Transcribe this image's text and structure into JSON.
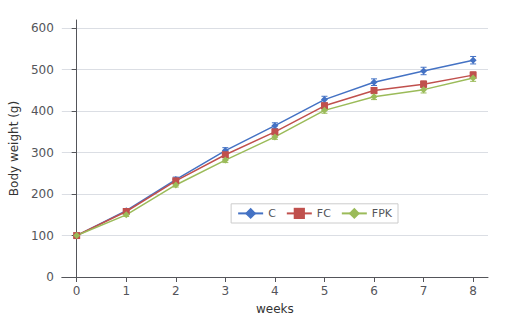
{
  "chart_data": {
    "type": "line",
    "xlabel": "weeks",
    "ylabel": "Body weight (g)",
    "x": [
      0,
      1,
      2,
      3,
      4,
      5,
      6,
      7,
      8
    ],
    "series": [
      {
        "name": "C",
        "color": "#4472C4",
        "marker": "diamond",
        "values": [
          100,
          160,
          235,
          305,
          365,
          428,
          470,
          497,
          523
        ],
        "errors": [
          4,
          5,
          6,
          7,
          7,
          8,
          8,
          9,
          9
        ]
      },
      {
        "name": "FC",
        "color": "#C0504D",
        "marker": "square",
        "values": [
          100,
          158,
          232,
          295,
          350,
          413,
          450,
          465,
          487
        ],
        "errors": [
          3,
          4,
          5,
          6,
          6,
          7,
          7,
          8,
          8
        ]
      },
      {
        "name": "FPK",
        "color": "#9BBB59",
        "marker": "diamond",
        "values": [
          100,
          150,
          222,
          282,
          338,
          402,
          435,
          452,
          480
        ],
        "errors": [
          3,
          4,
          5,
          6,
          6,
          7,
          7,
          8,
          8
        ]
      }
    ],
    "xlim": [
      -0.3,
      8.3
    ],
    "xticks": [
      0,
      1,
      2,
      3,
      4,
      5,
      6,
      7,
      8
    ],
    "ylim": [
      0,
      620
    ],
    "yticks": [
      0,
      100,
      200,
      300,
      400,
      500,
      600
    ],
    "grid": true,
    "legend": "lower right"
  }
}
